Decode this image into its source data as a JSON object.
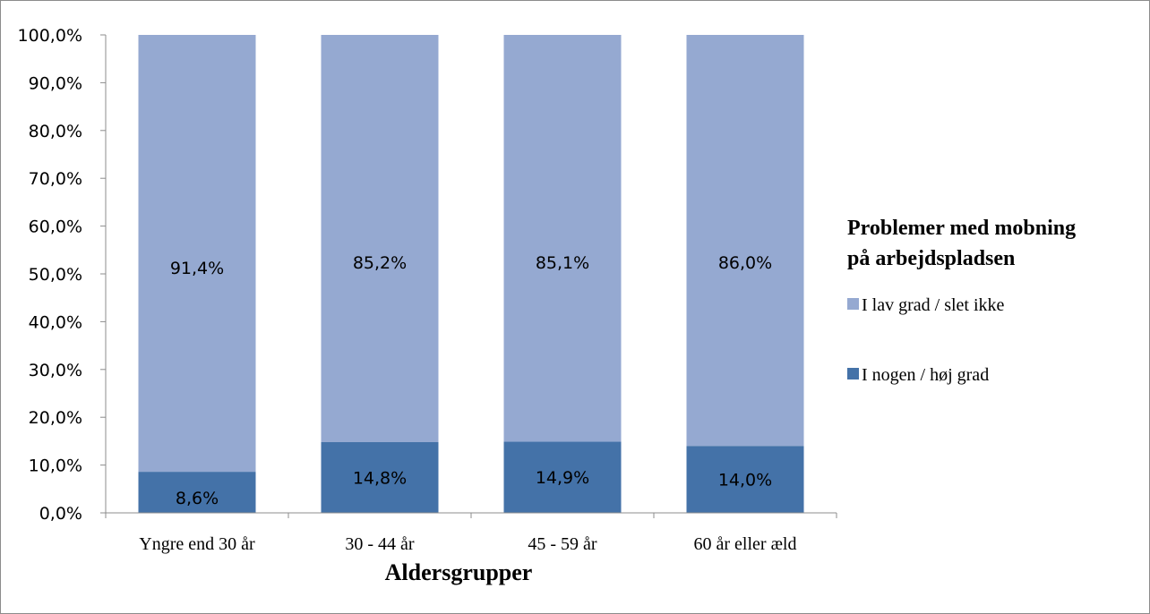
{
  "chart_data": {
    "type": "bar",
    "stacked": true,
    "categories": [
      "Yngre end 30 år",
      "30 - 44 år",
      "45 - 59 år",
      "60 år eller æld"
    ],
    "series": [
      {
        "name": "I nogen / høj grad",
        "values": [
          8.6,
          14.8,
          14.9,
          14.0
        ],
        "labels": [
          "8,6%",
          "14,8%",
          "14,9%",
          "14,0%"
        ],
        "color": "#4472A8"
      },
      {
        "name": "I lav grad / slet ikke",
        "values": [
          91.4,
          85.2,
          85.1,
          86.0
        ],
        "labels": [
          "91,4%",
          "85,2%",
          "85,1%",
          "86,0%"
        ],
        "color": "#95A9D1"
      }
    ],
    "xlabel": "Aldersgrupper",
    "ylabel": "",
    "ylim": [
      0,
      100
    ],
    "yticks": [
      0,
      10,
      20,
      30,
      40,
      50,
      60,
      70,
      80,
      90,
      100
    ],
    "ytick_labels": [
      "0,0%",
      "10,0%",
      "20,0%",
      "30,0%",
      "40,0%",
      "50,0%",
      "60,0%",
      "70,0%",
      "80,0%",
      "90,0%",
      "100,0%"
    ],
    "grid": false,
    "legend": {
      "title_lines": [
        "Problemer med mobning",
        "på arbejdspladsen"
      ],
      "placement": "right",
      "items": [
        "I lav grad / slet ikke",
        "I nogen / høj grad"
      ]
    }
  }
}
